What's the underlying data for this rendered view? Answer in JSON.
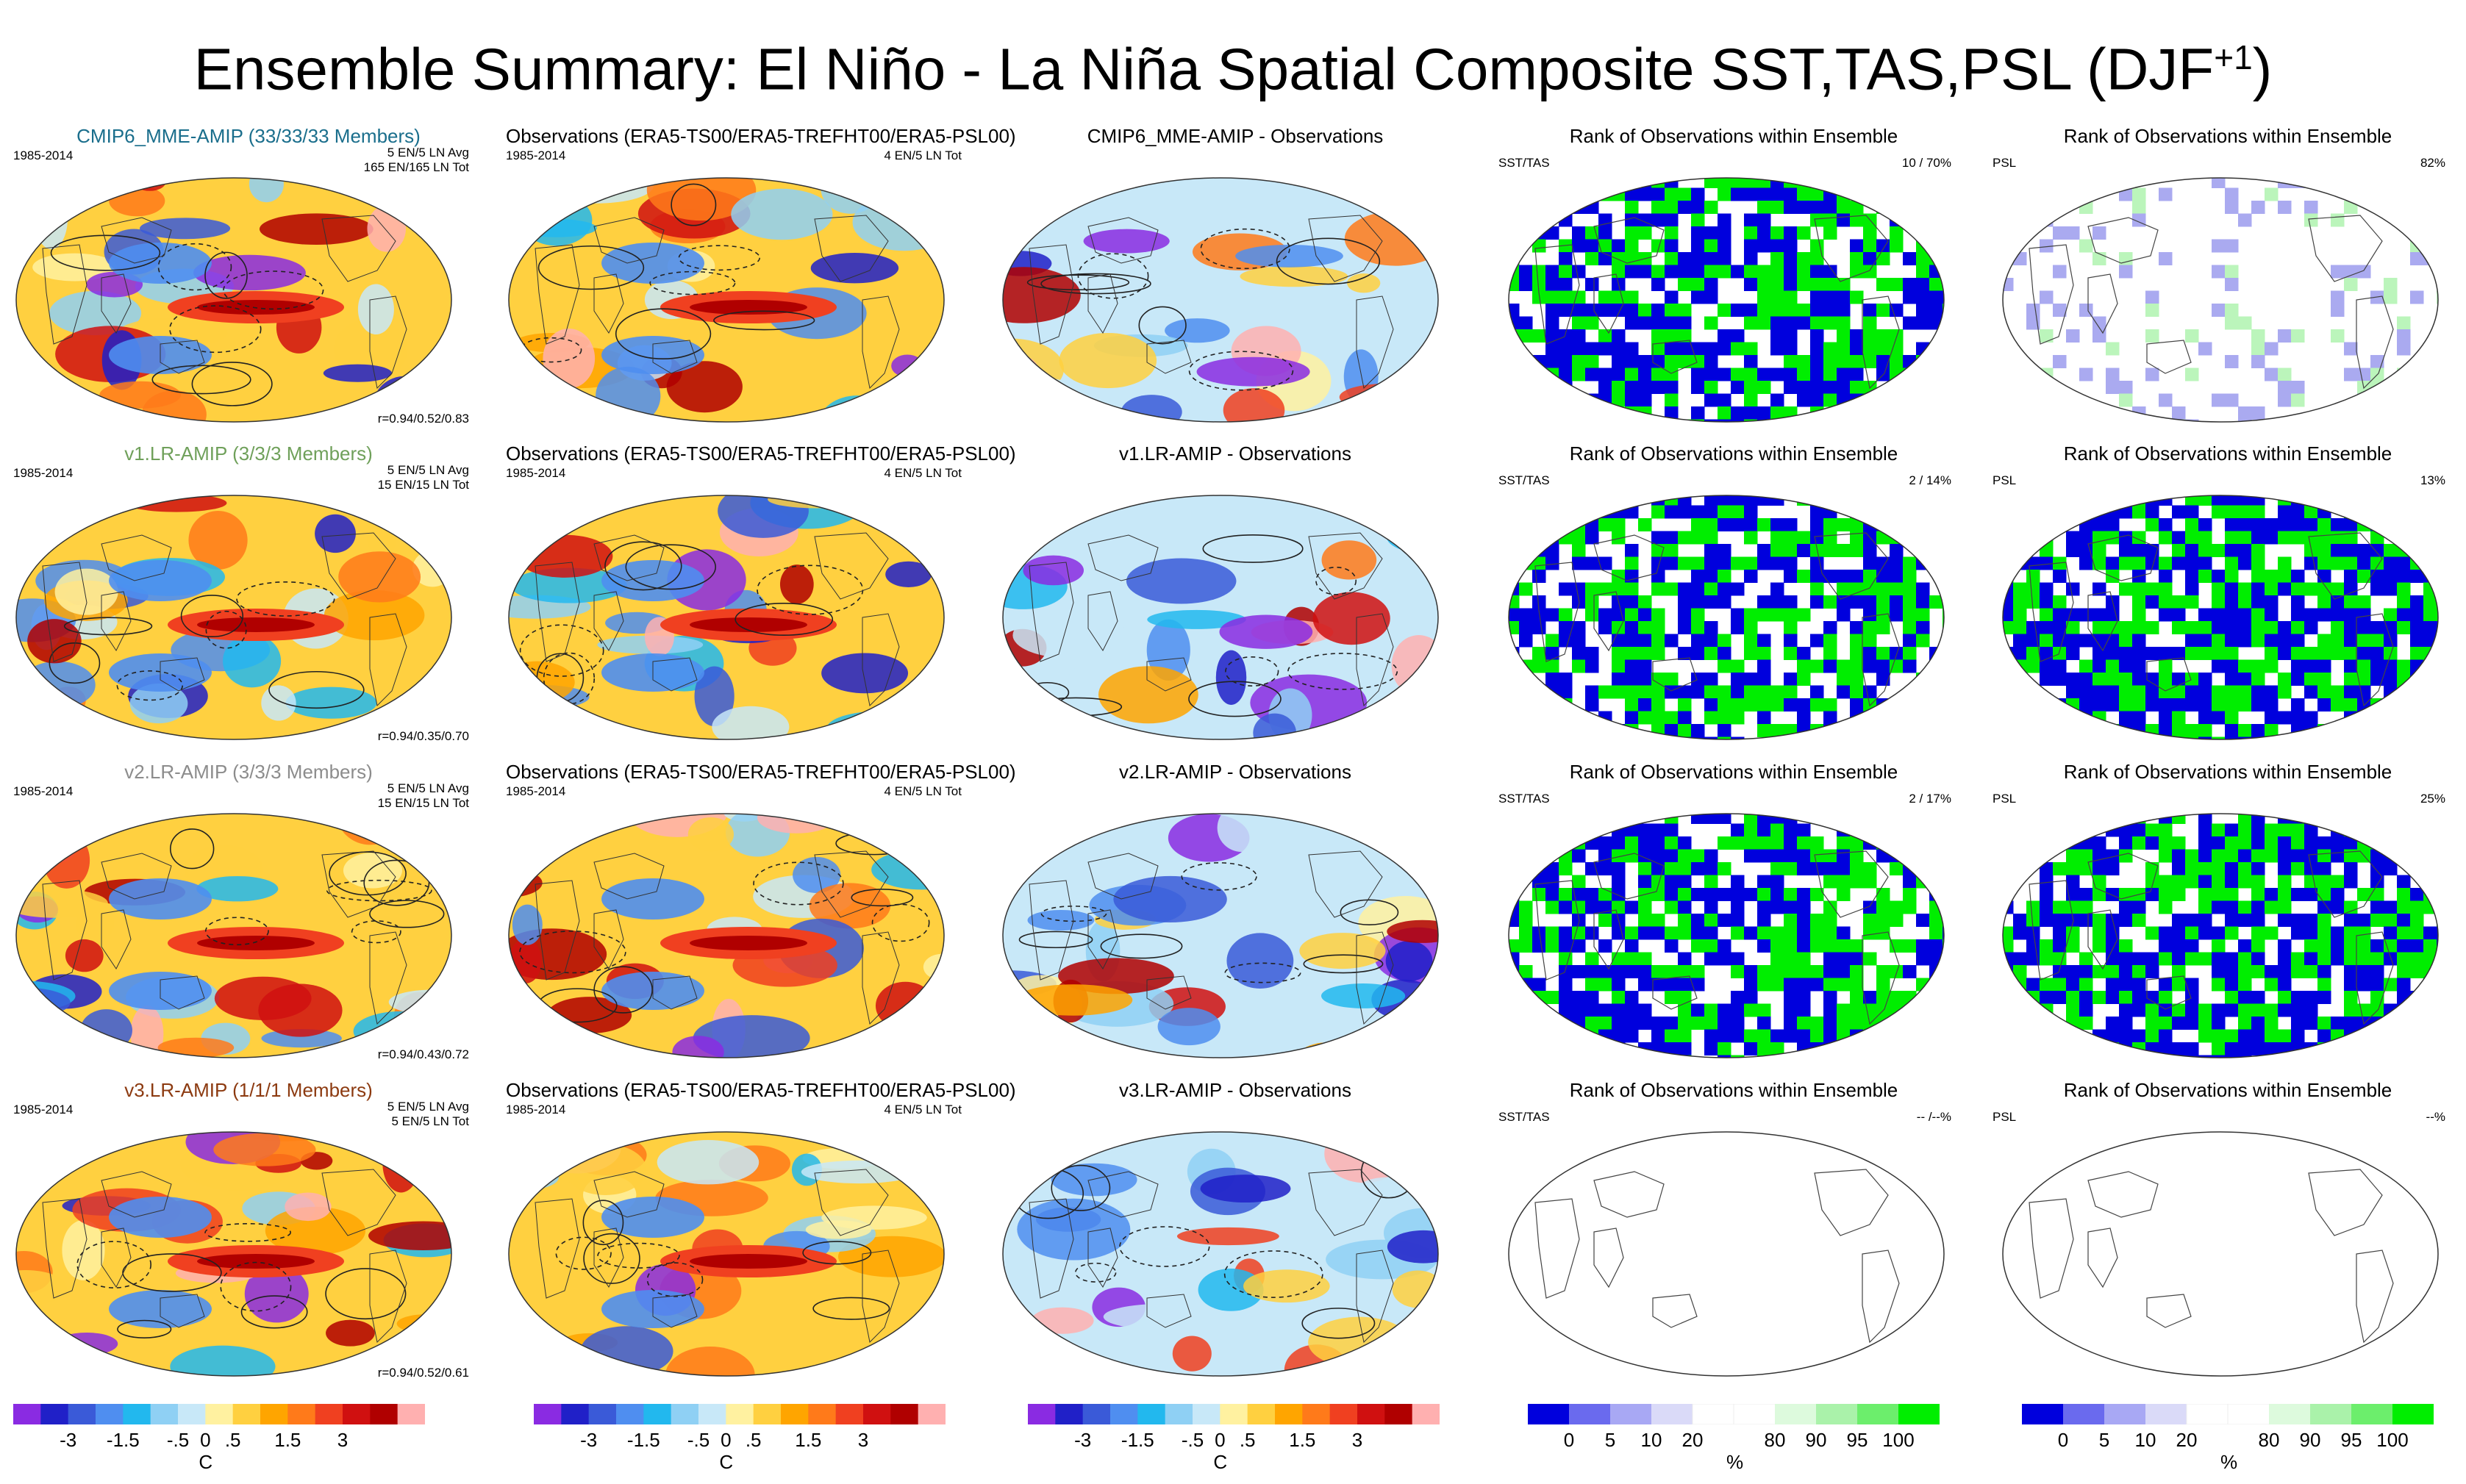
{
  "title": "Ensemble Summary: El Niño - La Niña Spatial Composite SST,TAS,PSL (DJF",
  "title_sup": "+1",
  "title_close": ")",
  "colors": {
    "model1": "#1a6e8c",
    "model2": "#6fa05a",
    "model3": "#8c8c8c",
    "model4": "#8c3a10",
    "blue_rank": "#0000dd",
    "green_rank": "#00ee00"
  },
  "rows": [
    {
      "model": {
        "title": "CMIP6_MME-AMIP (33/33/33 Members)",
        "period": "1985-2014",
        "stats1": "5 EN/5 LN Avg",
        "stats2": "165 EN/165 LN Tot",
        "corr": "r=0.94/0.52/0.83"
      },
      "obs": {
        "title": "Observations (ERA5-TS00/ERA5-TREFHT00/ERA5-PSL00)",
        "period": "1985-2014",
        "stats": "4 EN/5 LN Tot"
      },
      "diff": {
        "title": "CMIP6_MME-AMIP - Observations"
      },
      "rank1": {
        "title": "Rank of Observations within Ensemble",
        "var": "SST/TAS",
        "value": "10 /  70%"
      },
      "rank2": {
        "title": "Rank of Observations within Ensemble",
        "var": "PSL",
        "value": "82%"
      }
    },
    {
      "model": {
        "title": "v1.LR-AMIP (3/3/3 Members)",
        "period": "1985-2014",
        "stats1": "5 EN/5 LN Avg",
        "stats2": "15 EN/15 LN Tot",
        "corr": "r=0.94/0.35/0.70"
      },
      "obs": {
        "title": "Observations (ERA5-TS00/ERA5-TREFHT00/ERA5-PSL00)",
        "period": "1985-2014",
        "stats": "4 EN/5 LN Tot"
      },
      "diff": {
        "title": "v1.LR-AMIP - Observations"
      },
      "rank1": {
        "title": "Rank of Observations within Ensemble",
        "var": "SST/TAS",
        "value": "2 /  14%"
      },
      "rank2": {
        "title": "Rank of Observations within Ensemble",
        "var": "PSL",
        "value": "13%"
      }
    },
    {
      "model": {
        "title": "v2.LR-AMIP (3/3/3 Members)",
        "period": "1985-2014",
        "stats1": "5 EN/5 LN Avg",
        "stats2": "15 EN/15 LN Tot",
        "corr": "r=0.94/0.43/0.72"
      },
      "obs": {
        "title": "Observations (ERA5-TS00/ERA5-TREFHT00/ERA5-PSL00)",
        "period": "1985-2014",
        "stats": "4 EN/5 LN Tot"
      },
      "diff": {
        "title": "v2.LR-AMIP - Observations"
      },
      "rank1": {
        "title": "Rank of Observations within Ensemble",
        "var": "SST/TAS",
        "value": "2 /  17%"
      },
      "rank2": {
        "title": "Rank of Observations within Ensemble",
        "var": "PSL",
        "value": "25%"
      }
    },
    {
      "model": {
        "title": "v3.LR-AMIP (1/1/1 Members)",
        "period": "1985-2014",
        "stats1": "5 EN/5 LN Avg",
        "stats2": "5 EN/5 LN Tot",
        "corr": "r=0.94/0.52/0.61"
      },
      "obs": {
        "title": "Observations (ERA5-TS00/ERA5-TREFHT00/ERA5-PSL00)",
        "period": "1985-2014",
        "stats": "4 EN/5 LN Tot"
      },
      "diff": {
        "title": "v3.LR-AMIP - Observations"
      },
      "rank1": {
        "title": "Rank of Observations within Ensemble",
        "var": "SST/TAS",
        "value": "-- /--%"
      },
      "rank2": {
        "title": "Rank of Observations within Ensemble",
        "var": "PSL",
        "value": "--%"
      }
    }
  ],
  "colorbar_temp": {
    "ticks": [
      "-3",
      "-1.5",
      "-.5",
      "0",
      ".5",
      "1.5",
      "3"
    ],
    "unit": "C",
    "colors": [
      "#8a2be2",
      "#2020c8",
      "#3a5ad8",
      "#4f8ef0",
      "#22b8ee",
      "#8fd0f4",
      "#c8e8f8",
      "#fff1a0",
      "#ffd040",
      "#ffa500",
      "#ff7a1a",
      "#f04020",
      "#d01010",
      "#b00000",
      "#ffb0b0"
    ]
  },
  "colorbar_rank": {
    "ticks": [
      "0",
      "5",
      "10",
      "20",
      "80",
      "90",
      "95",
      "100"
    ],
    "unit": "%",
    "colors": [
      "#0000dd",
      "#6a6aee",
      "#a8a8f4",
      "#dadaf8",
      "#ffffff",
      "#ffffff",
      "#ddfadd",
      "#aaf2aa",
      "#6cee6c",
      "#00ee00"
    ]
  }
}
